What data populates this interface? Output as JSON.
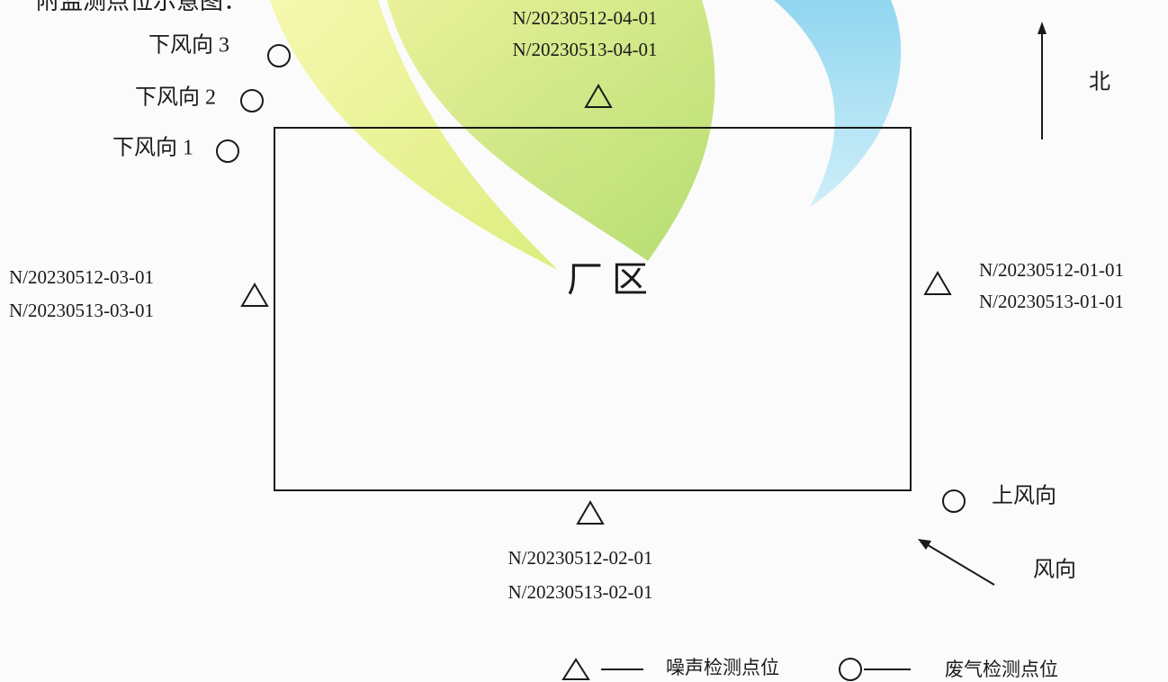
{
  "header": {
    "title": "附监测点位示意图："
  },
  "plant": {
    "label": "厂 区"
  },
  "noise_points": [
    {
      "labels": [
        "N/20230512-04-01",
        "N/20230513-04-01"
      ]
    },
    {
      "labels": [
        "N/20230512-03-01",
        "N/20230513-03-01"
      ]
    },
    {
      "labels": [
        "N/20230512-01-01",
        "N/20230513-01-01"
      ]
    },
    {
      "labels": [
        "N/20230512-02-01",
        "N/20230513-02-01"
      ]
    }
  ],
  "exhaust_points": [
    {
      "label": "下风向 3"
    },
    {
      "label": "下风向 2"
    },
    {
      "label": "下风向 1"
    },
    {
      "label": "上风向"
    }
  ],
  "compass": {
    "label": "北"
  },
  "wind": {
    "label": "风向"
  },
  "legend": {
    "noise": "噪声检测点位",
    "exhaust": "废气检测点位"
  }
}
